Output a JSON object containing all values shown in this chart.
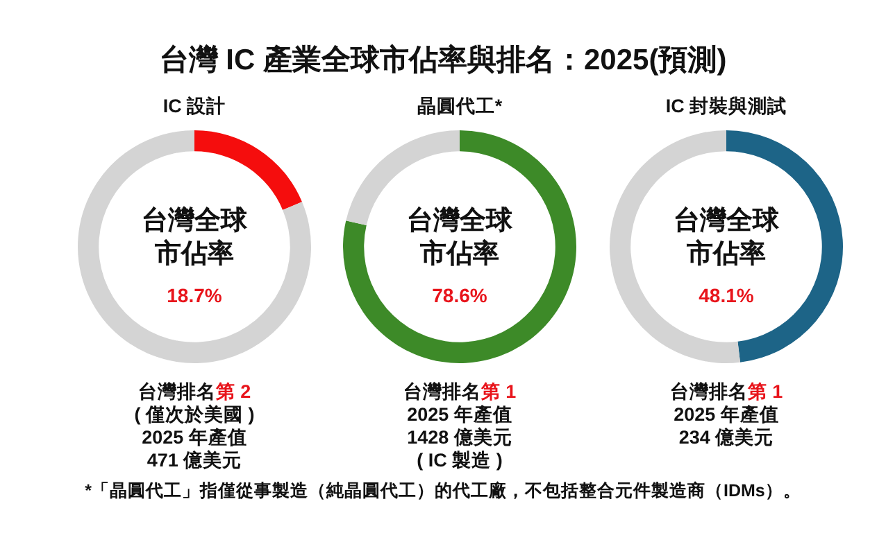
{
  "chart_data": [
    {
      "type": "other",
      "title": "台灣 IC 產業全球市佔率與排名：2025(預測)",
      "annotations": [
        "*「晶圓代工」指僅從事製造（純晶圓代工）的代工廠，不包括整合元件製造商（IDMs）。"
      ]
    },
    {
      "type": "donut",
      "title": "IC 設計",
      "categories": [
        null,
        null
      ],
      "values": [
        18.7,
        81.3
      ],
      "colors": [
        "#f50d0d",
        "#d4d4d4"
      ],
      "annotations": [
        "台灣全球",
        "市佔率",
        "18.7%",
        "台灣排名第 2",
        "( 僅次於美國 )",
        "2025 年產值",
        "471 億美元"
      ]
    },
    {
      "type": "donut",
      "title": "晶圓代工*",
      "categories": [
        null,
        null
      ],
      "values": [
        78.6,
        21.4
      ],
      "colors": [
        "#3d8a28",
        "#d4d4d4"
      ],
      "annotations": [
        "台灣全球",
        "市佔率",
        "78.6%",
        "台灣排名第 1",
        "2025 年產值",
        "1428 億美元",
        "( IC 製造 )"
      ]
    },
    {
      "type": "donut",
      "title": "IC 封裝與測試",
      "categories": [
        null,
        null
      ],
      "values": [
        48.1,
        51.9
      ],
      "colors": [
        "#1d6487",
        "#d4d4d4"
      ],
      "annotations": [
        "台灣全球",
        "市佔率",
        "48.1%",
        "台灣排名第 1",
        "2025 年產值",
        "234 億美元"
      ]
    }
  ]
}
